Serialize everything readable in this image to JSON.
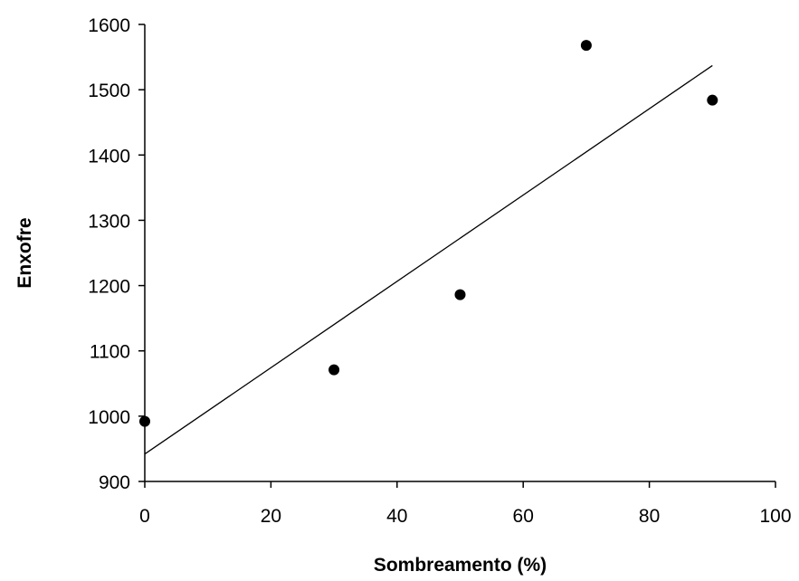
{
  "chart_data": {
    "type": "scatter",
    "title": "",
    "xlabel": "Sombreamento (%)",
    "ylabel": "Enxofre",
    "xlim": [
      0,
      100
    ],
    "ylim": [
      900,
      1600
    ],
    "x_ticks": [
      0,
      20,
      40,
      60,
      80,
      100
    ],
    "y_ticks": [
      900,
      1000,
      1100,
      1200,
      1300,
      1400,
      1500,
      1600
    ],
    "x_tick_labels": [
      "0",
      "20",
      "40",
      "60",
      "80",
      "100"
    ],
    "y_tick_labels": [
      "900",
      "1000",
      "1100",
      "1200",
      "1300",
      "1400",
      "1500",
      "1600"
    ],
    "grid": false,
    "legend": "none",
    "points": [
      {
        "x": 0,
        "y": 992
      },
      {
        "x": 30,
        "y": 1071
      },
      {
        "x": 50,
        "y": 1186
      },
      {
        "x": 70,
        "y": 1568
      },
      {
        "x": 90,
        "y": 1484
      }
    ],
    "trendline": {
      "type": "linear",
      "from": {
        "x": 0,
        "y": 942
      },
      "to": {
        "x": 90,
        "y": 1537
      }
    },
    "colors": {
      "marker": "#000000",
      "line": "#000000",
      "axis": "#000000"
    }
  }
}
